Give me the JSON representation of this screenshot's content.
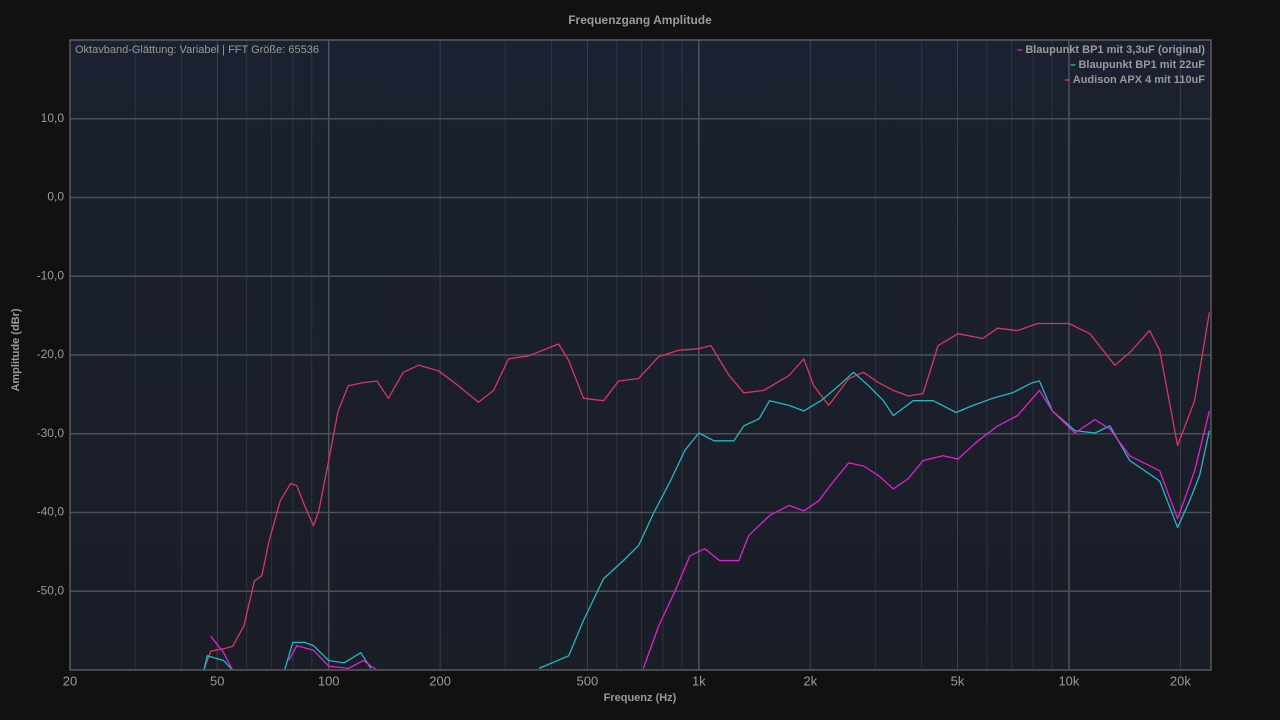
{
  "chart_data": {
    "type": "line",
    "title": "Frequenzgang Amplitude",
    "annotation": "Oktavband-Glättung: Variabel | FFT Größe: 65536",
    "xlabel": "Frequenz (Hz)",
    "ylabel": "Amplitude (dBr)",
    "xscale": "log",
    "xlim": [
      20,
      24200
    ],
    "ylim": [
      -60,
      20
    ],
    "xticks": [
      20,
      50,
      100,
      200,
      500,
      {
        "value": 1000,
        "label": "1k"
      },
      {
        "value": 2000,
        "label": "2k"
      },
      {
        "value": 5000,
        "label": "5k"
      },
      {
        "value": 10000,
        "label": "10k"
      },
      {
        "value": 20000,
        "label": "20k"
      }
    ],
    "x_minor_grid": [
      30,
      40,
      60,
      70,
      80,
      90,
      300,
      400,
      600,
      700,
      800,
      900,
      3000,
      4000,
      6000,
      7000,
      8000,
      9000
    ],
    "yticks": [
      {
        "value": 10,
        "label": "10,0"
      },
      {
        "value": 0,
        "label": "0,0"
      },
      {
        "value": -10,
        "label": "-10,0"
      },
      {
        "value": -20,
        "label": "-20,0"
      },
      {
        "value": -30,
        "label": "-30,0"
      },
      {
        "value": -40,
        "label": "-40,0"
      },
      {
        "value": -50,
        "label": "-50,0"
      }
    ],
    "grid": true,
    "legend": "top-right",
    "series": [
      {
        "name": "Blaupunkt BP1 mit 3,3uF (original)",
        "color": "#e41fcf",
        "x": [
          48,
          52,
          55,
          60,
          78,
          82,
          91,
          100,
          113,
          124,
          135,
          300,
          708,
          779,
          864,
          946,
          1038,
          1137,
          1283,
          1365,
          1552,
          1752,
          1922,
          2109,
          2315,
          2540,
          2786,
          3057,
          3353,
          3680,
          4037,
          4569,
          5014,
          5680,
          6418,
          7263,
          8321,
          9018,
          10380,
          11750,
          12900,
          14590,
          17590,
          19660,
          21850,
          23960
        ],
        "values": [
          -55.7,
          -57.8,
          -60,
          null,
          -58.8,
          -56.9,
          -57.5,
          -59.5,
          -59.8,
          -58.8,
          -60,
          null,
          -59.8,
          -54.4,
          -49.9,
          -45.5,
          -44.6,
          -46.1,
          -46.1,
          -42.9,
          -40.4,
          -39.1,
          -39.8,
          -38.5,
          -36,
          -33.7,
          -34.1,
          -35.3,
          -37,
          -35.7,
          -33.4,
          -32.8,
          -33.2,
          -30.9,
          -29,
          -27.7,
          -24.5,
          -27.1,
          -29.9,
          -28.2,
          -29.4,
          -32.8,
          -34.7,
          -40.8,
          -34.7,
          -27.1
        ]
      },
      {
        "name": "Blaupunkt BP1 mit 22uF",
        "color": "#22b8c4",
        "x": [
          46,
          47,
          52,
          55,
          60,
          76,
          80,
          86,
          91,
          100,
          110,
          122,
          130,
          200,
          370,
          445,
          488,
          553,
          626,
          687,
          760,
          838,
          917,
          1000,
          1099,
          1244,
          1323,
          1455,
          1552,
          1752,
          1922,
          2137,
          2387,
          2620,
          2873,
          3152,
          3353,
          3795,
          4297,
          4953,
          5505,
          6222,
          7041,
          7970,
          8321,
          9018,
          10380,
          11750,
          12900,
          14590,
          17590,
          19660,
          21180,
          22550,
          23960
        ],
        "values": [
          -60,
          -58.2,
          -58.8,
          -60,
          null,
          -60,
          -56.5,
          -56.5,
          -56.9,
          -58.8,
          -59.1,
          -57.8,
          -59.8,
          null,
          -59.8,
          -58.2,
          -53.7,
          -48.4,
          -46.1,
          -44.2,
          -39.8,
          -36,
          -32.1,
          -29.9,
          -30.9,
          -30.9,
          -29,
          -28.1,
          -25.8,
          -26.4,
          -27.1,
          -25.8,
          -23.9,
          -22.2,
          -23.9,
          -25.8,
          -27.7,
          -25.8,
          -25.8,
          -27.3,
          -26.4,
          -25.5,
          -24.8,
          -23.5,
          -23.3,
          -27.1,
          -29.6,
          -29.9,
          -29,
          -33.4,
          -36,
          -41.9,
          -38.5,
          -35.3,
          -29.6
        ]
      },
      {
        "name": "Audison APX 4 mit 110uF",
        "color": "#d9365f",
        "x": [
          46,
          48,
          52,
          55,
          59,
          63,
          66,
          69,
          74,
          79,
          82,
          86,
          91,
          94,
          100,
          106,
          113,
          124,
          135,
          145,
          159,
          175,
          198,
          224,
          254,
          279,
          306,
          347,
          418,
          445,
          488,
          553,
          607,
          687,
          779,
          882,
          1000,
          1078,
          1207,
          1323,
          1499,
          1752,
          1922,
          2044,
          2244,
          2540,
          2786,
          3057,
          3353,
          3680,
          4037,
          4430,
          5014,
          5850,
          6418,
          7263,
          8219,
          9018,
          10000,
          11390,
          13300,
          14590,
          16520,
          17590,
          19660,
          21850,
          23960
        ],
        "values": [
          -60,
          -57.6,
          -57.3,
          -57,
          -54.4,
          -48.7,
          -48,
          -43.6,
          -38.5,
          -36.3,
          -36.6,
          -39.1,
          -41.7,
          -39.8,
          -33.4,
          -27.1,
          -23.9,
          -23.5,
          -23.3,
          -25.5,
          -22.2,
          -21.3,
          -22,
          -23.9,
          -26,
          -24.5,
          -20.5,
          -20.1,
          -18.6,
          -20.7,
          -25.5,
          -25.8,
          -23.3,
          -23,
          -20.2,
          -19.4,
          -19.2,
          -18.8,
          -22.6,
          -24.8,
          -24.5,
          -22.6,
          -20.5,
          -23.9,
          -26.4,
          -23,
          -22.2,
          -23.5,
          -24.5,
          -25.2,
          -24.9,
          -18.8,
          -17.3,
          -17.9,
          -16.6,
          -16.9,
          -16,
          -16,
          -16,
          -17.3,
          -21.3,
          -19.7,
          -16.9,
          -19.4,
          -31.5,
          -25.8,
          -14.6
        ]
      }
    ]
  }
}
